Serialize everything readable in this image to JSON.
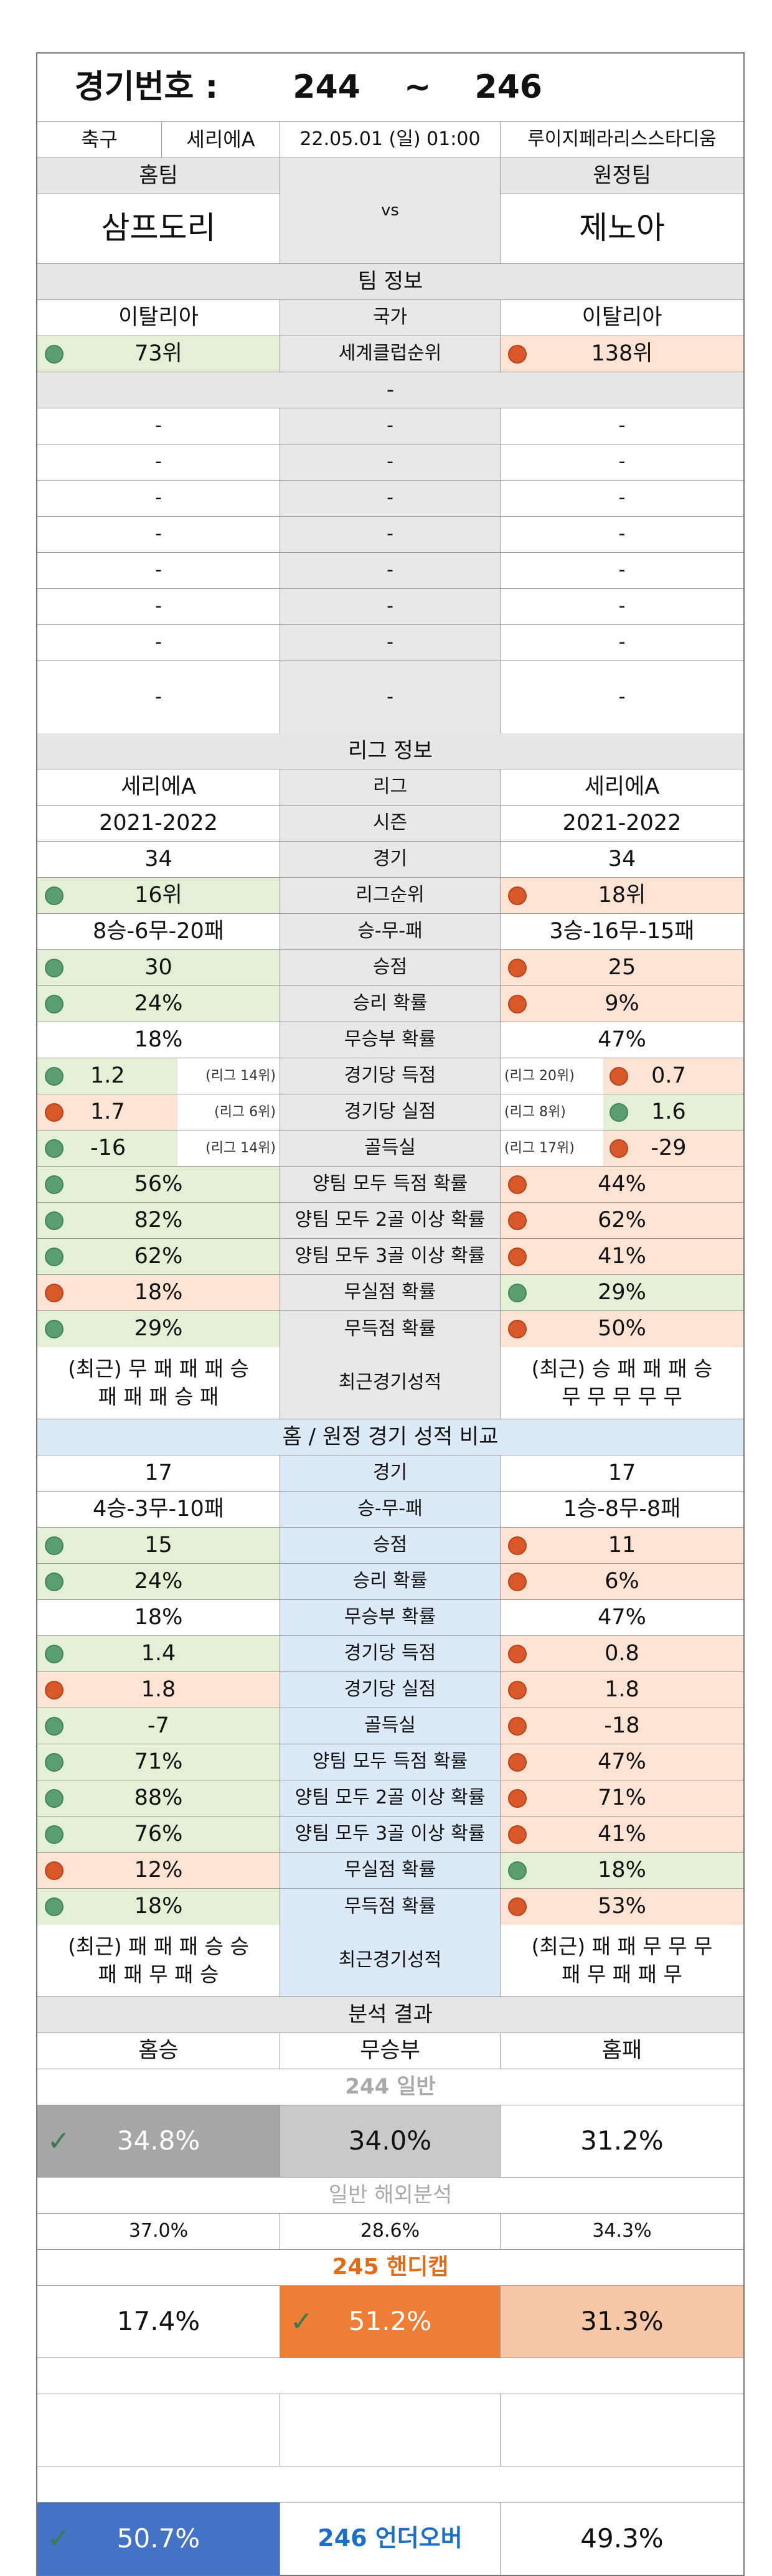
{
  "header": {
    "label": "경기번호 :",
    "from": "244",
    "tilde": "~",
    "to": "246"
  },
  "match": {
    "sport": "축구",
    "league": "세리에A",
    "datetime": "22.05.01 (일) 01:00",
    "stadium": "루이지페라리스스타디움"
  },
  "teams": {
    "home_label": "홈팀",
    "away_label": "원정팀",
    "home": "삼프도리",
    "vs": "vs",
    "away": "제노아"
  },
  "team_info": {
    "title": "팀 정보",
    "country": {
      "home": "이탈리아",
      "label": "국가",
      "away": "이탈리아"
    },
    "club_rank": {
      "home": "73위",
      "label": "세계클럽순위",
      "away": "138위",
      "home_color": "green",
      "away_color": "red"
    },
    "dash": "-"
  },
  "league_info": {
    "title": "리그 정보",
    "rows": [
      {
        "home": "세리에A",
        "label": "리그",
        "away": "세리에A"
      },
      {
        "home": "2021-2022",
        "label": "시즌",
        "away": "2021-2022"
      },
      {
        "home": "34",
        "label": "경기",
        "away": "34"
      },
      {
        "home": "16위",
        "label": "리그순위",
        "away": "18위",
        "hd": "green",
        "ad": "red"
      },
      {
        "home": "8승-6무-20패",
        "label": "승-무-패",
        "away": "3승-16무-15패"
      },
      {
        "home": "30",
        "label": "승점",
        "away": "25",
        "hd": "green",
        "ad": "red"
      },
      {
        "home": "24%",
        "label": "승리 확률",
        "away": "9%",
        "hd": "green",
        "ad": "red"
      },
      {
        "home": "18%",
        "label": "무승부 확률",
        "away": "47%"
      },
      {
        "home": "1.2",
        "label": "경기당 득점",
        "away": "0.7",
        "hd": "green",
        "ad": "red",
        "hr": "(리그 14위)",
        "ar": "(리그 20위)",
        "half": true
      },
      {
        "home": "1.7",
        "label": "경기당 실점",
        "away": "1.6",
        "hd": "red",
        "ad": "green",
        "hr": "(리그 6위)",
        "ar": "(리그 8위)",
        "half": true
      },
      {
        "home": "-16",
        "label": "골득실",
        "away": "-29",
        "hd": "green",
        "ad": "red",
        "hr": "(리그 14위)",
        "ar": "(리그 17위)",
        "half": true
      },
      {
        "home": "56%",
        "label": "양팀 모두 득점 확률",
        "away": "44%",
        "hd": "green",
        "ad": "red"
      },
      {
        "home": "82%",
        "label": "양팀 모두 2골 이상 확률",
        "away": "62%",
        "hd": "green",
        "ad": "red"
      },
      {
        "home": "62%",
        "label": "양팀 모두 3골 이상 확률",
        "away": "41%",
        "hd": "green",
        "ad": "red"
      },
      {
        "home": "18%",
        "label": "무실점 확률",
        "away": "29%",
        "hd": "red",
        "ad": "green"
      },
      {
        "home": "29%",
        "label": "무득점 확률",
        "away": "50%",
        "hd": "green",
        "ad": "red"
      }
    ],
    "recent": {
      "home1": "(최근) 무 패 패 패 승",
      "home2": "패 패 패 승 패",
      "label": "최근경기성적",
      "away1": "(최근) 승 패 패 패 승",
      "away2": "무 무 무 무 무"
    }
  },
  "home_away": {
    "title": "홈 / 원정 경기 성적 비교",
    "rows": [
      {
        "home": "17",
        "label": "경기",
        "away": "17"
      },
      {
        "home": "4승-3무-10패",
        "label": "승-무-패",
        "away": "1승-8무-8패"
      },
      {
        "home": "15",
        "label": "승점",
        "away": "11",
        "hd": "green",
        "ad": "red"
      },
      {
        "home": "24%",
        "label": "승리 확률",
        "away": "6%",
        "hd": "green",
        "ad": "red"
      },
      {
        "home": "18%",
        "label": "무승부 확률",
        "away": "47%"
      },
      {
        "home": "1.4",
        "label": "경기당 득점",
        "away": "0.8",
        "hd": "green",
        "ad": "red"
      },
      {
        "home": "1.8",
        "label": "경기당 실점",
        "away": "1.8",
        "hd": "red",
        "ad": "red"
      },
      {
        "home": "-7",
        "label": "골득실",
        "away": "-18",
        "hd": "green",
        "ad": "red"
      },
      {
        "home": "71%",
        "label": "양팀 모두 득점 확률",
        "away": "47%",
        "hd": "green",
        "ad": "red"
      },
      {
        "home": "88%",
        "label": "양팀 모두 2골 이상 확률",
        "away": "71%",
        "hd": "green",
        "ad": "red"
      },
      {
        "home": "76%",
        "label": "양팀 모두 3골 이상 확률",
        "away": "41%",
        "hd": "green",
        "ad": "red"
      },
      {
        "home": "12%",
        "label": "무실점 확률",
        "away": "18%",
        "hd": "red",
        "ad": "green"
      },
      {
        "home": "18%",
        "label": "무득점 확률",
        "away": "53%",
        "hd": "green",
        "ad": "red"
      }
    ],
    "recent": {
      "home1": "(최근) 패 패 패 승 승",
      "home2": "패 패 무 패 승",
      "label": "최근경기성적",
      "away1": "(최근) 패 패 무 무 무",
      "away2": "패 무 패 패 무"
    }
  },
  "analysis": {
    "title": "분석 결과",
    "cols": {
      "home_win": "홈승",
      "draw": "무승부",
      "home_loss": "홈패"
    },
    "general": {
      "title": "244 일반",
      "home": "34.8%",
      "draw": "34.0%",
      "away": "31.2%"
    },
    "overseas": {
      "title": "일반 해외분석",
      "home": "37.0%",
      "draw": "28.6%",
      "away": "34.3%"
    },
    "handicap": {
      "title": "245 핸디캡",
      "home": "17.4%",
      "draw": "51.2%",
      "away": "31.3%"
    },
    "underover": {
      "under": "50.7%",
      "title": "246 언더오버",
      "over": "49.3%"
    },
    "check": "✓"
  },
  "colors": {
    "green_dot": "#5b9e6f",
    "red_dot": "#d8582a",
    "orange_title": "#e06c1a",
    "blue_title": "#1d6fc4",
    "orange_fill": "#ee7d36",
    "blue_fill": "#4472c4",
    "gray_fill": "#a6a6a6"
  }
}
